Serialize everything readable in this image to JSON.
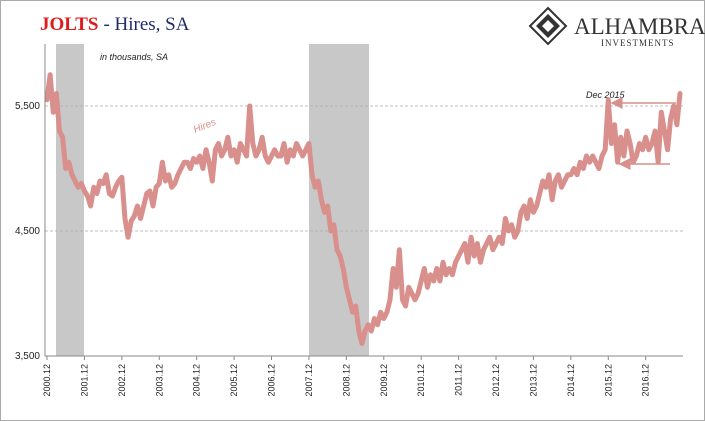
{
  "chart_data": {
    "type": "line",
    "title": "JOLTS",
    "subtitle": "- Hires, SA",
    "logo": {
      "name": "ALHAMBRA",
      "tagline": "INVESTMENTS"
    },
    "annotations": {
      "units": "in thousands, SA",
      "series_label": "Hires",
      "point_label": "Dec 2015"
    },
    "categories": [
      "2000.12",
      null,
      null,
      null,
      null,
      null,
      null,
      null,
      null,
      null,
      null,
      null,
      "2001.12",
      null,
      null,
      null,
      null,
      null,
      null,
      null,
      null,
      null,
      null,
      null,
      "2002.12",
      null,
      null,
      null,
      null,
      null,
      null,
      null,
      null,
      null,
      null,
      null,
      "2003.12",
      null,
      null,
      null,
      null,
      null,
      null,
      null,
      null,
      null,
      null,
      null,
      "2004.12",
      null,
      null,
      null,
      null,
      null,
      null,
      null,
      null,
      null,
      null,
      null,
      "2005.12",
      null,
      null,
      null,
      null,
      null,
      null,
      null,
      null,
      null,
      null,
      null,
      "2006.12",
      null,
      null,
      null,
      null,
      null,
      null,
      null,
      null,
      null,
      null,
      null,
      "2007.12",
      null,
      null,
      null,
      null,
      null,
      null,
      null,
      null,
      null,
      null,
      null,
      "2008.12",
      null,
      null,
      null,
      null,
      null,
      null,
      null,
      null,
      null,
      null,
      null,
      "2009.12",
      null,
      null,
      null,
      null,
      null,
      null,
      null,
      null,
      null,
      null,
      null,
      "2010.12",
      null,
      null,
      null,
      null,
      null,
      null,
      null,
      null,
      null,
      null,
      null,
      "2011.12",
      null,
      null,
      null,
      null,
      null,
      null,
      null,
      null,
      null,
      null,
      null,
      "2012.12",
      null,
      null,
      null,
      null,
      null,
      null,
      null,
      null,
      null,
      null,
      null,
      "2013.12",
      null,
      null,
      null,
      null,
      null,
      null,
      null,
      null,
      null,
      null,
      null,
      "2014.12",
      null,
      null,
      null,
      null,
      null,
      null,
      null,
      null,
      null,
      null,
      null,
      "2015.12",
      null,
      null,
      null,
      null,
      null,
      null,
      null,
      null,
      null,
      null,
      null,
      "2016.12",
      null,
      null,
      null,
      null,
      null,
      null,
      null,
      null,
      null,
      null,
      null
    ],
    "series": [
      {
        "name": "Hires",
        "color": "#d98f8c",
        "values": [
          5550,
          5750,
          5450,
          5600,
          5300,
          5250,
          5000,
          5050,
          4950,
          4900,
          4850,
          4880,
          4820,
          4780,
          4700,
          4850,
          4800,
          4900,
          4880,
          4950,
          4800,
          4780,
          4850,
          4900,
          4930,
          4600,
          4450,
          4580,
          4620,
          4700,
          4600,
          4700,
          4800,
          4820,
          4700,
          4850,
          4880,
          5050,
          4900,
          4950,
          4850,
          4880,
          4950,
          5000,
          5050,
          5050,
          5000,
          5080,
          5050,
          5100,
          5000,
          5150,
          5050,
          4900,
          5150,
          5200,
          5100,
          5150,
          5250,
          5100,
          5150,
          5050,
          5200,
          5150,
          5100,
          5500,
          5200,
          5100,
          5150,
          5250,
          5100,
          5050,
          5100,
          5150,
          5100,
          5100,
          5200,
          5050,
          5150,
          5100,
          5200,
          5150,
          5100,
          5150,
          5200,
          4950,
          4850,
          4900,
          4750,
          4650,
          4700,
          4500,
          4550,
          4350,
          4300,
          4200,
          4050,
          3950,
          3850,
          3900,
          3700,
          3600,
          3700,
          3750,
          3700,
          3800,
          3750,
          3850,
          3800,
          3850,
          3950,
          4200,
          4050,
          4350,
          3950,
          3900,
          4050,
          4000,
          3950,
          4000,
          4100,
          4200,
          4050,
          4150,
          4100,
          4200,
          4100,
          4250,
          4150,
          4200,
          4150,
          4250,
          4300,
          4350,
          4400,
          4250,
          4450,
          4300,
          4400,
          4250,
          4350,
          4400,
          4450,
          4350,
          4400,
          4450,
          4400,
          4600,
          4500,
          4550,
          4450,
          4500,
          4650,
          4700,
          4600,
          4750,
          4650,
          4700,
          4800,
          4900,
          4850,
          4950,
          4750,
          4900,
          4950,
          4850,
          4900,
          4950,
          4950,
          5000,
          4950,
          5050,
          5000,
          5100,
          5050,
          5100,
          5050,
          5000,
          5100,
          5150,
          5550,
          5200,
          5350,
          5050,
          5250,
          5100,
          5300,
          5200,
          5050,
          5100,
          5200,
          5150,
          5250,
          5150,
          5200,
          5300,
          5050,
          5450,
          5300,
          5150,
          5400,
          5500,
          5350,
          5600
        ]
      }
    ],
    "ylim": [
      3500,
      6000
    ],
    "yticks": [
      {
        "value": 3500,
        "label": "3,500"
      },
      {
        "value": 4500,
        "label": "4,500"
      },
      {
        "value": 5500,
        "label": "5,500"
      }
    ],
    "grid": true
  }
}
